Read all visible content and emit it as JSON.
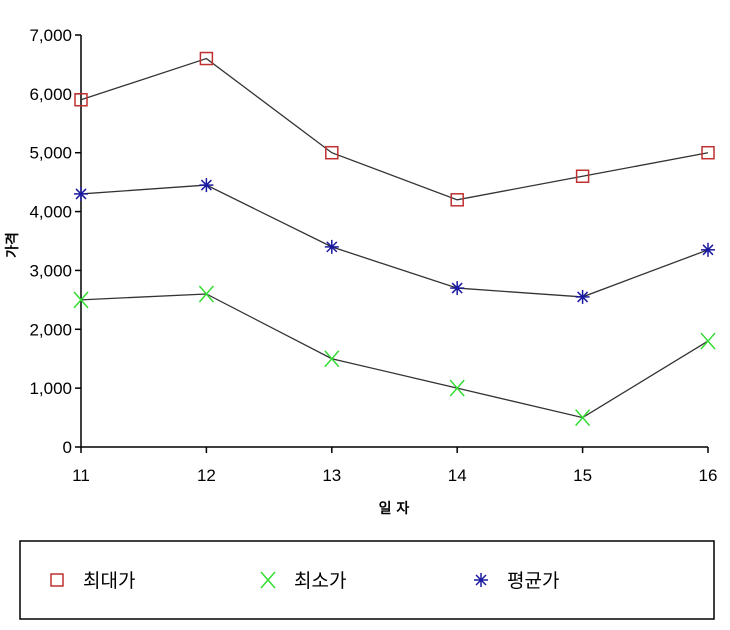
{
  "chart_data": {
    "type": "line",
    "xlabel": "일 자",
    "ylabel": "가격",
    "x": [
      11,
      12,
      13,
      14,
      15,
      16
    ],
    "x_tick_labels": [
      "11",
      "12",
      "13",
      "14",
      "15",
      "16"
    ],
    "ylim": [
      0,
      7000
    ],
    "y_ticks": [
      0,
      1000,
      2000,
      3000,
      4000,
      5000,
      6000,
      7000
    ],
    "y_tick_labels": [
      "0",
      "1,000",
      "2,000",
      "3,000",
      "4,000",
      "5,000",
      "6,000",
      "7,000"
    ],
    "grid": false,
    "legend_position": "bottom",
    "series": [
      {
        "name": "최대가",
        "marker": "square",
        "color": "#c03030",
        "values": [
          5900,
          6600,
          5000,
          4200,
          4600,
          5000
        ]
      },
      {
        "name": "최소가",
        "marker": "x",
        "color": "#33dd33",
        "values": [
          2500,
          2600,
          1500,
          1000,
          500,
          1800
        ]
      },
      {
        "name": "평균가",
        "marker": "asterisk",
        "color": "#1a1aa0",
        "values": [
          4300,
          4450,
          3400,
          2700,
          2550,
          3350
        ]
      }
    ],
    "line_color": "#333333"
  }
}
